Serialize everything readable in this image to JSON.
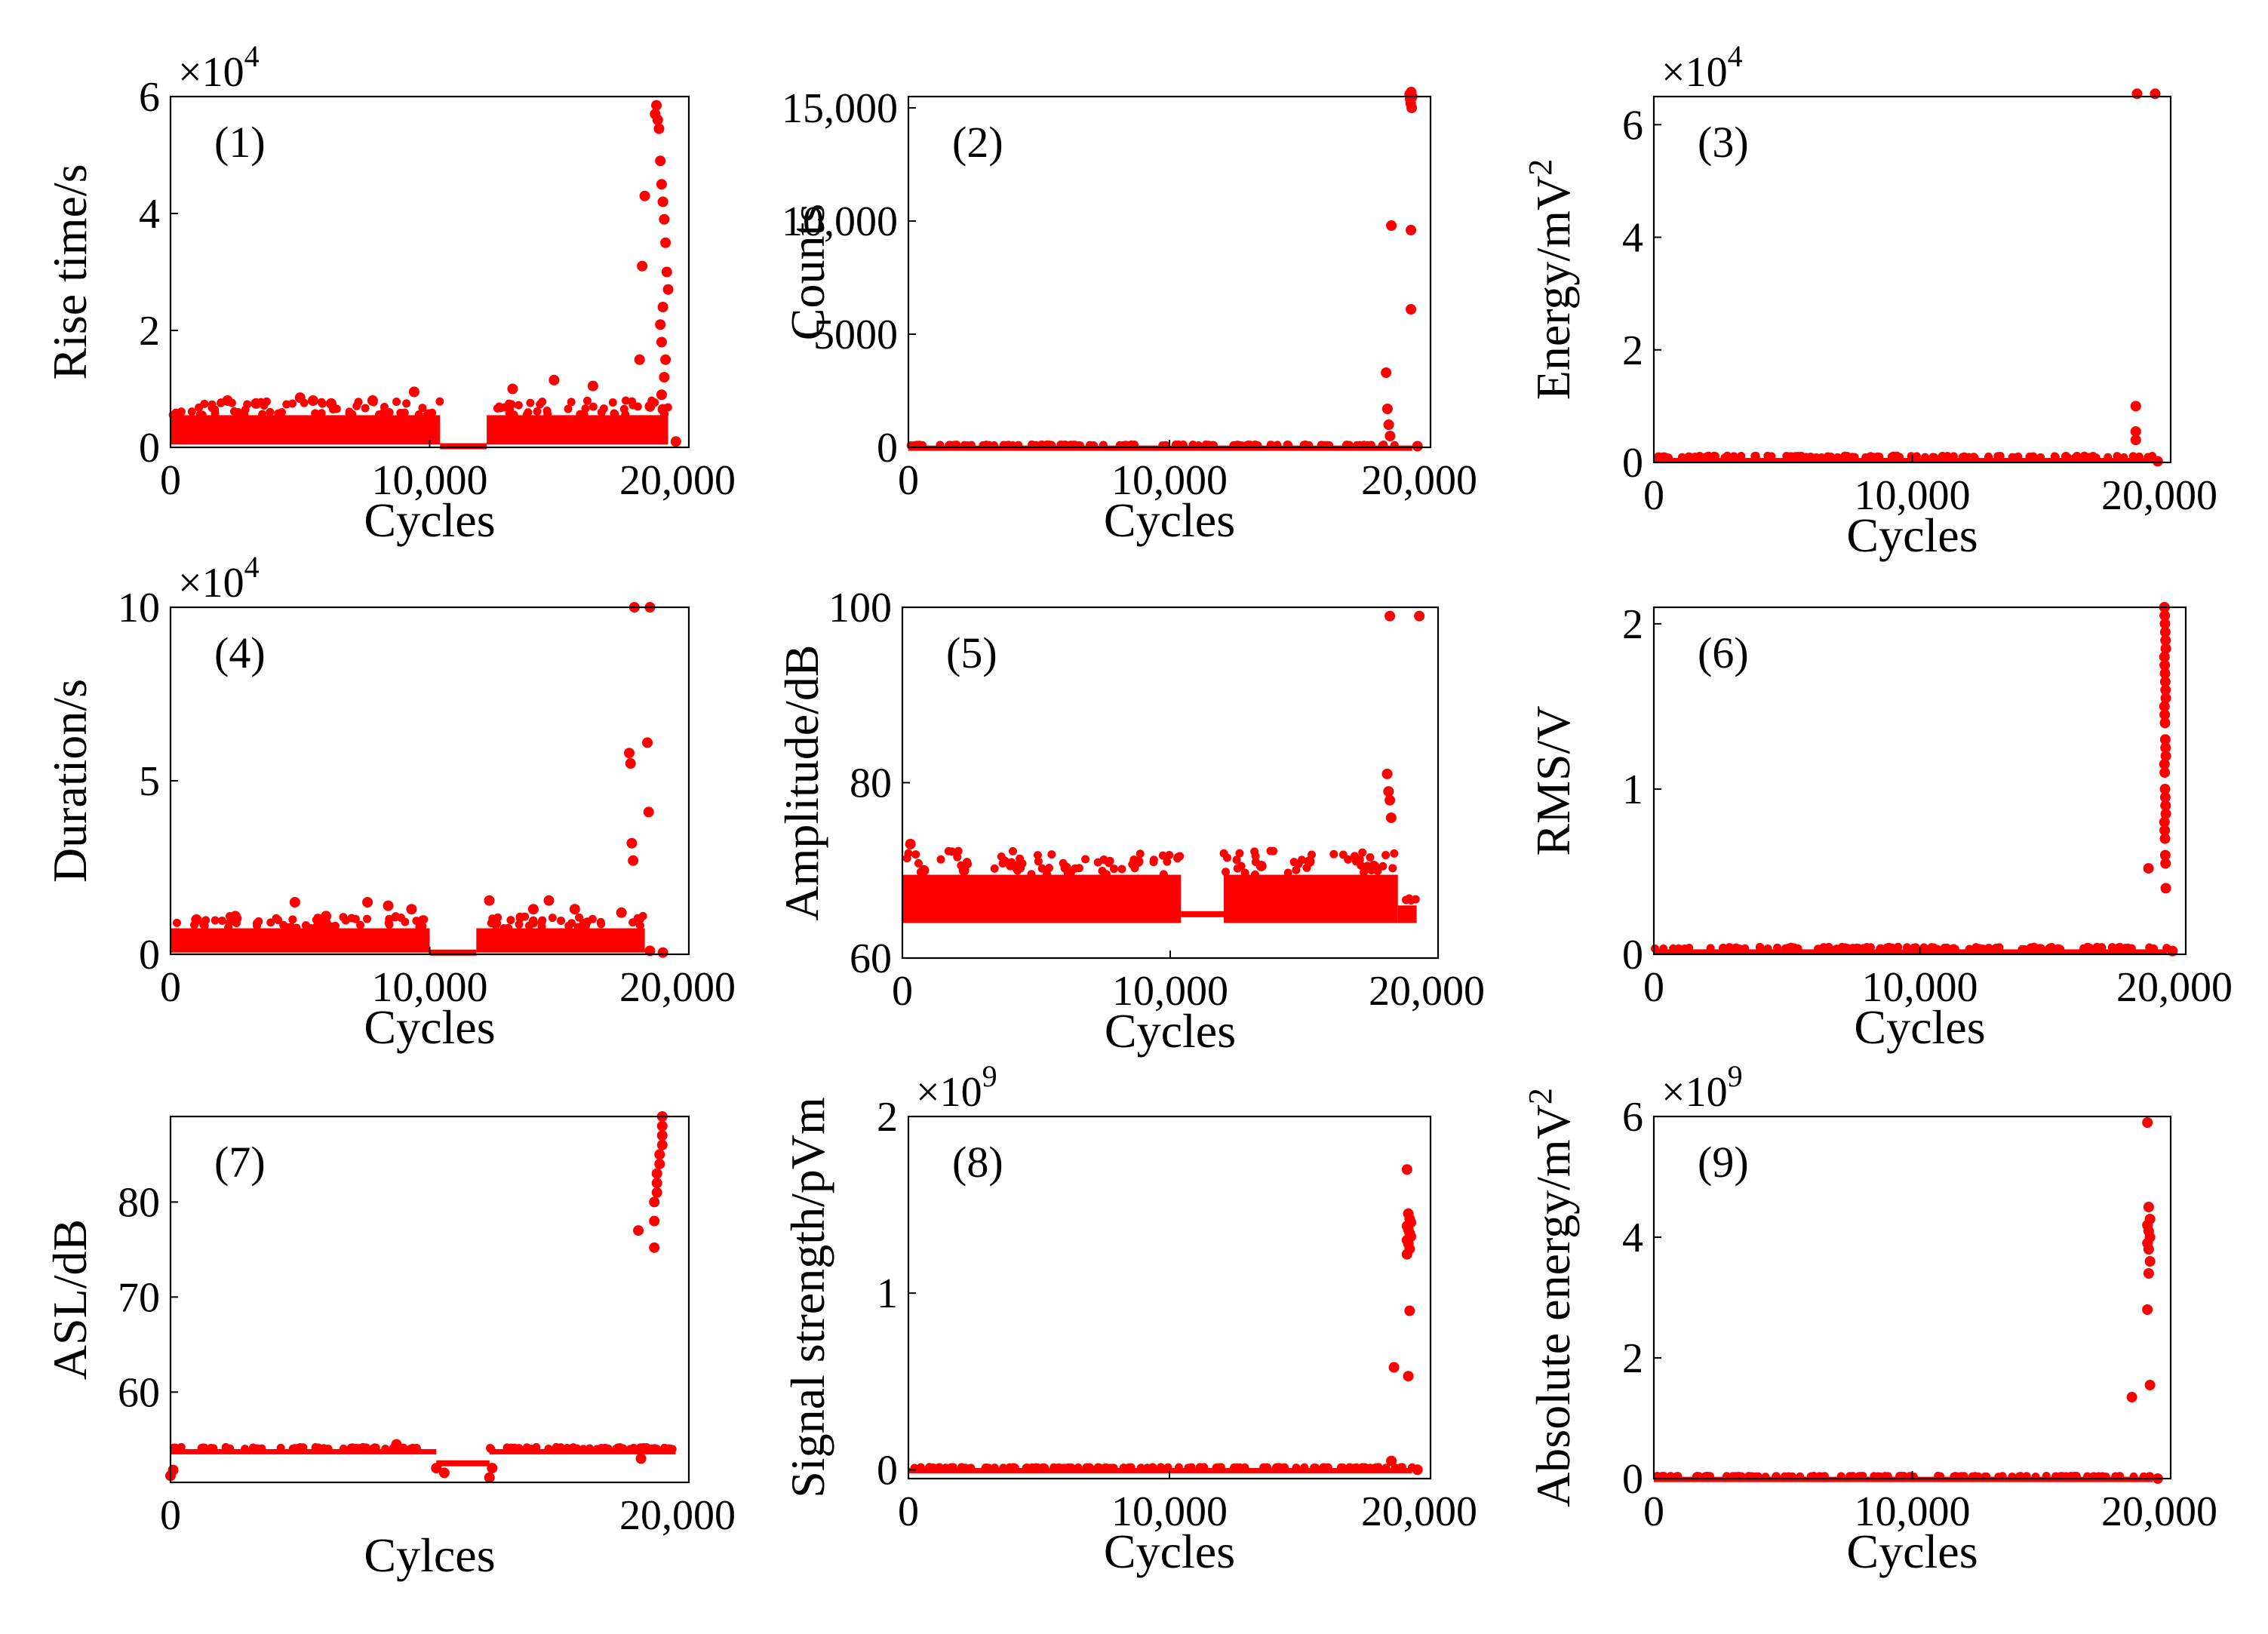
{
  "figure": {
    "marker_color": "#ff0000"
  },
  "chart_data": [
    {
      "type": "scatter",
      "label": "(1)",
      "ylabel": "Rise time/s",
      "xlabel": "Cycles",
      "exponent": "×10",
      "exponent_power": "4",
      "xlim": [
        0,
        20000
      ],
      "ylim": [
        0,
        6
      ],
      "xticks": [
        0,
        10000,
        20000
      ],
      "xtick_labels": [
        "0",
        "10,000",
        "20,000"
      ],
      "yticks": [
        0,
        2,
        4,
        6
      ],
      "ytick_labels": [
        "0",
        "2",
        "4",
        "6"
      ],
      "baseline": [
        {
          "x0": 0,
          "x1": 10400,
          "y0": 0.05,
          "y1": 0.55
        },
        {
          "x0": 12200,
          "x1": 19200,
          "y0": 0.05,
          "y1": 0.55
        }
      ],
      "baseline_bridge": [
        {
          "x0": 10400,
          "x1": 12200,
          "y": 0.02
        }
      ],
      "points": [
        [
          2200,
          0.8
        ],
        [
          3300,
          0.75
        ],
        [
          5000,
          0.85
        ],
        [
          5500,
          0.8
        ],
        [
          6200,
          0.75
        ],
        [
          7800,
          0.8
        ],
        [
          9400,
          0.95
        ],
        [
          13200,
          1.0
        ],
        [
          14800,
          1.15
        ],
        [
          16300,
          1.05
        ],
        [
          18100,
          1.5
        ],
        [
          18200,
          3.1
        ],
        [
          18300,
          4.3
        ],
        [
          18500,
          0.7
        ],
        [
          18700,
          5.7
        ],
        [
          18750,
          5.85
        ],
        [
          18800,
          5.6
        ],
        [
          18850,
          5.45
        ],
        [
          18900,
          4.9
        ],
        [
          18950,
          4.5
        ],
        [
          19000,
          4.2
        ],
        [
          19050,
          3.9
        ],
        [
          19100,
          3.5
        ],
        [
          19150,
          3.0
        ],
        [
          19200,
          2.7
        ],
        [
          19000,
          2.4
        ],
        [
          18900,
          2.1
        ],
        [
          18950,
          1.8
        ],
        [
          19100,
          1.5
        ],
        [
          19050,
          1.2
        ],
        [
          18950,
          0.9
        ],
        [
          19000,
          0.65
        ],
        [
          19500,
          0.1
        ]
      ]
    },
    {
      "type": "scatter",
      "label": "(2)",
      "ylabel": "Counts",
      "xlabel": "Cycles",
      "exponent": "",
      "exponent_power": "",
      "xlim": [
        0,
        20000
      ],
      "ylim": [
        0,
        15500
      ],
      "xticks": [
        0,
        10000,
        20000
      ],
      "xtick_labels": [
        "0",
        "10,000",
        "20,000"
      ],
      "yticks": [
        0,
        5000,
        10000,
        15000
      ],
      "ytick_labels": [
        "0",
        "5000",
        "10,000",
        "15,000"
      ],
      "baseline": [
        {
          "x0": 0,
          "x1": 19300,
          "y0": 0,
          "y1": 80
        }
      ],
      "baseline_bridge": [],
      "points": [
        [
          18300,
          3300
        ],
        [
          18350,
          1700
        ],
        [
          18400,
          1000
        ],
        [
          18450,
          500
        ],
        [
          18500,
          9800
        ],
        [
          19200,
          15600
        ],
        [
          19220,
          15400
        ],
        [
          19240,
          15200
        ],
        [
          19260,
          15700
        ],
        [
          19280,
          15000
        ],
        [
          19300,
          15500
        ],
        [
          19250,
          9600
        ],
        [
          19250,
          6100
        ],
        [
          19500,
          50
        ]
      ]
    },
    {
      "type": "scatter",
      "label": "(3)",
      "ylabel": "Energy/mV",
      "ylabel_sup": "2",
      "xlabel": "Cycles",
      "exponent": "×10",
      "exponent_power": "4",
      "xlim": [
        0,
        20000
      ],
      "ylim": [
        0,
        6.5
      ],
      "xticks": [
        0,
        10000,
        20000
      ],
      "xtick_labels": [
        "0",
        "10,000",
        "20,000"
      ],
      "yticks": [
        0,
        2,
        4,
        6
      ],
      "ytick_labels": [
        "0",
        "2",
        "4",
        "6"
      ],
      "baseline": [
        {
          "x0": 0,
          "x1": 19300,
          "y0": 0,
          "y1": 0.08
        }
      ],
      "baseline_bridge": [],
      "points": [
        [
          18700,
          6.55
        ],
        [
          19400,
          6.55
        ],
        [
          18650,
          1.0
        ],
        [
          18650,
          0.55
        ],
        [
          18650,
          0.4
        ],
        [
          19500,
          0.02
        ]
      ]
    },
    {
      "type": "scatter",
      "label": "(4)",
      "ylabel": "Duration/s",
      "xlabel": "Cycles",
      "exponent": "×10",
      "exponent_power": "4",
      "xlim": [
        0,
        20000
      ],
      "ylim": [
        0,
        10
      ],
      "xticks": [
        0,
        10000,
        20000
      ],
      "xtick_labels": [
        "0",
        "10,000",
        "20,000"
      ],
      "yticks": [
        0,
        5,
        10
      ],
      "ytick_labels": [
        "0",
        "5",
        "10"
      ],
      "baseline": [
        {
          "x0": 0,
          "x1": 10000,
          "y0": 0.05,
          "y1": 0.75
        },
        {
          "x0": 11800,
          "x1": 18300,
          "y0": 0.05,
          "y1": 0.75
        }
      ],
      "baseline_bridge": [
        {
          "x0": 10000,
          "x1": 11800,
          "y": 0.05
        }
      ],
      "points": [
        [
          1000,
          1.0
        ],
        [
          2500,
          1.1
        ],
        [
          4800,
          1.5
        ],
        [
          6000,
          1.1
        ],
        [
          7600,
          1.5
        ],
        [
          8400,
          1.4
        ],
        [
          9300,
          1.3
        ],
        [
          12300,
          1.55
        ],
        [
          14000,
          1.3
        ],
        [
          14600,
          1.55
        ],
        [
          15600,
          1.3
        ],
        [
          17400,
          1.2
        ],
        [
          17700,
          5.8
        ],
        [
          17750,
          5.5
        ],
        [
          17800,
          3.2
        ],
        [
          17850,
          2.7
        ],
        [
          17900,
          10.0
        ],
        [
          18500,
          10.0
        ],
        [
          18400,
          6.1
        ],
        [
          18450,
          4.1
        ],
        [
          18500,
          0.1
        ],
        [
          19000,
          0.05
        ]
      ]
    },
    {
      "type": "scatter",
      "label": "(5)",
      "ylabel": "Amplitude/dB",
      "xlabel": "Cycles",
      "exponent": "",
      "exponent_power": "",
      "xlim": [
        0,
        20000
      ],
      "ylim": [
        60,
        100
      ],
      "xticks": [
        0,
        10000,
        20000
      ],
      "xtick_labels": [
        "0",
        "10,000",
        "20,000"
      ],
      "yticks": [
        60,
        80,
        100
      ],
      "ytick_labels": [
        "60",
        "80",
        "100"
      ],
      "baseline": [
        {
          "x0": 0,
          "x1": 10400,
          "y0": 64,
          "y1": 69.5
        },
        {
          "x0": 12000,
          "x1": 18500,
          "y0": 64,
          "y1": 69.5
        },
        {
          "x0": 18500,
          "x1": 19200,
          "y0": 64,
          "y1": 66
        }
      ],
      "baseline_bridge": [
        {
          "x0": 10400,
          "x1": 12000,
          "y": 65
        }
      ],
      "points": [
        [
          300,
          73
        ],
        [
          800,
          70
        ],
        [
          2300,
          70
        ],
        [
          4300,
          70.2
        ],
        [
          6100,
          70.3
        ],
        [
          8800,
          71
        ],
        [
          13400,
          70.5
        ],
        [
          15200,
          71
        ],
        [
          17600,
          70.5
        ],
        [
          18100,
          81
        ],
        [
          18150,
          79
        ],
        [
          18200,
          78
        ],
        [
          18250,
          76
        ],
        [
          18200,
          99
        ],
        [
          19300,
          99
        ]
      ]
    },
    {
      "type": "scatter",
      "label": "(6)",
      "ylabel": "RMS/V",
      "xlabel": "Cycles",
      "exponent": "",
      "exponent_power": "",
      "xlim": [
        0,
        20000
      ],
      "ylim": [
        0,
        2.1
      ],
      "xticks": [
        0,
        10000,
        20000
      ],
      "xtick_labels": [
        "0",
        "10,000",
        "20,000"
      ],
      "yticks": [
        0,
        1,
        2
      ],
      "ytick_labels": [
        "0",
        "1",
        "2"
      ],
      "baseline": [
        {
          "x0": 0,
          "x1": 19300,
          "y0": 0,
          "y1": 0.03
        }
      ],
      "baseline_bridge": [],
      "points": [
        [
          18600,
          0.52
        ],
        [
          19200,
          2.1
        ],
        [
          19210,
          2.05
        ],
        [
          19220,
          2.0
        ],
        [
          19230,
          1.95
        ],
        [
          19240,
          1.9
        ],
        [
          19250,
          1.85
        ],
        [
          19200,
          1.8
        ],
        [
          19210,
          1.75
        ],
        [
          19220,
          1.7
        ],
        [
          19230,
          1.65
        ],
        [
          19240,
          1.6
        ],
        [
          19250,
          1.55
        ],
        [
          19200,
          1.5
        ],
        [
          19210,
          1.45
        ],
        [
          19220,
          1.4
        ],
        [
          19230,
          1.3
        ],
        [
          19240,
          1.25
        ],
        [
          19250,
          1.2
        ],
        [
          19200,
          1.15
        ],
        [
          19210,
          1.1
        ],
        [
          19220,
          1.0
        ],
        [
          19230,
          0.95
        ],
        [
          19240,
          0.9
        ],
        [
          19250,
          0.85
        ],
        [
          19200,
          0.8
        ],
        [
          19210,
          0.75
        ],
        [
          19220,
          0.7
        ],
        [
          19230,
          0.6
        ],
        [
          19240,
          0.55
        ],
        [
          19250,
          0.4
        ],
        [
          19500,
          0.02
        ]
      ]
    },
    {
      "type": "scatter",
      "label": "(7)",
      "ylabel": "ASL/dB",
      "xlabel": "Cylces",
      "exponent": "",
      "exponent_power": "",
      "xlim": [
        0,
        19500
      ],
      "ylim": [
        50.5,
        89
      ],
      "xticks": [
        0,
        20000
      ],
      "xtick_labels": [
        "0",
        "20,000"
      ],
      "yticks": [
        60,
        70,
        80
      ],
      "ytick_labels": [
        "60",
        "70",
        "80"
      ],
      "baseline": [
        {
          "x0": 0,
          "x1": 10000,
          "y0": 53.6,
          "y1": 54.0
        },
        {
          "x0": 12000,
          "x1": 19000,
          "y0": 53.6,
          "y1": 54.0
        }
      ],
      "baseline_bridge": [
        {
          "x0": 10000,
          "x1": 12000,
          "y": 52.5
        }
      ],
      "points": [
        [
          0,
          51.2
        ],
        [
          100,
          51.8
        ],
        [
          10000,
          52.0
        ],
        [
          10300,
          51.5
        ],
        [
          12000,
          51.0
        ],
        [
          12100,
          52.0
        ],
        [
          8500,
          54.5
        ],
        [
          17700,
          53.0
        ],
        [
          17600,
          77.0
        ],
        [
          18200,
          75.2
        ],
        [
          18200,
          78.0
        ],
        [
          18200,
          80.0
        ],
        [
          18300,
          81.0
        ],
        [
          18300,
          82.0
        ],
        [
          18300,
          83.0
        ],
        [
          18400,
          84.0
        ],
        [
          18400,
          85.0
        ],
        [
          18500,
          86.0
        ],
        [
          18500,
          87.0
        ],
        [
          18500,
          88.0
        ],
        [
          18500,
          89.0
        ]
      ]
    },
    {
      "type": "scatter",
      "label": "(8)",
      "ylabel": "Signal strength/pVm",
      "xlabel": "Cycles",
      "exponent": "×10",
      "exponent_power": "9",
      "xlim": [
        0,
        20000
      ],
      "ylim": [
        -0.05,
        2
      ],
      "xticks": [
        0,
        10000,
        20000
      ],
      "xtick_labels": [
        "0",
        "10,000",
        "20,000"
      ],
      "yticks": [
        0,
        1,
        2
      ],
      "ytick_labels": [
        "0",
        "1",
        "2"
      ],
      "baseline": [
        {
          "x0": 0,
          "x1": 19300,
          "y0": 0,
          "y1": 0.01
        }
      ],
      "baseline_bridge": [],
      "points": [
        [
          18500,
          0.05
        ],
        [
          18600,
          0.58
        ],
        [
          19100,
          1.7
        ],
        [
          19150,
          1.45
        ],
        [
          19200,
          1.42
        ],
        [
          19250,
          1.4
        ],
        [
          19100,
          1.38
        ],
        [
          19150,
          1.36
        ],
        [
          19200,
          1.34
        ],
        [
          19250,
          1.32
        ],
        [
          19100,
          1.3
        ],
        [
          19150,
          1.28
        ],
        [
          19200,
          1.25
        ],
        [
          19100,
          1.22
        ],
        [
          19200,
          0.9
        ],
        [
          19150,
          0.53
        ],
        [
          19500,
          0.0
        ]
      ]
    },
    {
      "type": "scatter",
      "label": "(9)",
      "ylabel": "Absolute energy/mV",
      "ylabel_sup": "2",
      "xlabel": "Cycles",
      "exponent": "×10",
      "exponent_power": "9",
      "xlim": [
        0,
        20000
      ],
      "ylim": [
        0,
        6
      ],
      "xticks": [
        0,
        10000,
        20000
      ],
      "xtick_labels": [
        "0",
        "10,000",
        "20,000"
      ],
      "yticks": [
        0,
        2,
        4,
        6
      ],
      "ytick_labels": [
        "0",
        "2",
        "4",
        "6"
      ],
      "baseline": [
        {
          "x0": 0,
          "x1": 19300,
          "y0": 0,
          "y1": 0.03
        }
      ],
      "baseline_bridge": [],
      "points": [
        [
          18500,
          1.35
        ],
        [
          19100,
          5.9
        ],
        [
          19150,
          4.5
        ],
        [
          19200,
          4.3
        ],
        [
          19100,
          4.2
        ],
        [
          19150,
          4.1
        ],
        [
          19200,
          4.0
        ],
        [
          19100,
          3.9
        ],
        [
          19150,
          3.8
        ],
        [
          19200,
          3.6
        ],
        [
          19150,
          3.4
        ],
        [
          19100,
          2.8
        ],
        [
          19200,
          1.55
        ],
        [
          19500,
          0.0
        ]
      ]
    }
  ]
}
